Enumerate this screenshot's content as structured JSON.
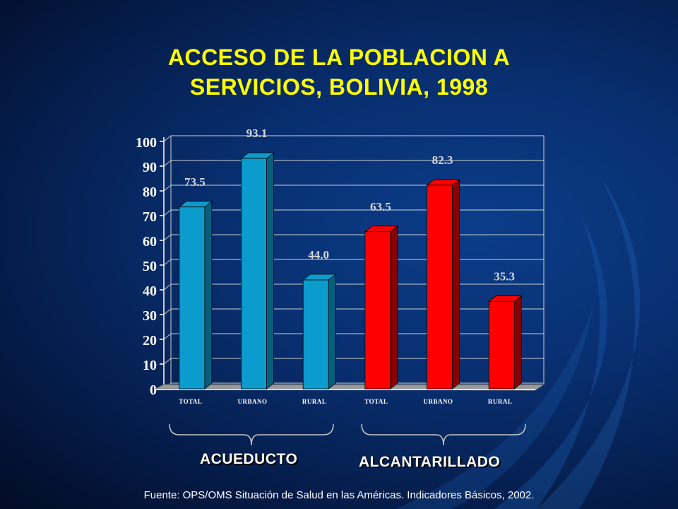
{
  "title_line1": "ACCESO DE LA POBLACION A",
  "title_line2": "SERVICIOS,  BOLIVIA, 1998",
  "groups": [
    "ACUEDUCTO",
    "ALCANTARILLADO"
  ],
  "source": "Fuente: OPS/OMS Situación de Salud en las Américas.  Indicadores Básicos, 2002.",
  "colors": {
    "acueducto_front": "#0b9ccd",
    "acueducto_side": "#055f7d",
    "alcantarillado_front": "#ff0000",
    "alcantarillado_side": "#8a0000",
    "title": "#ffff00"
  },
  "chart_data": {
    "type": "bar",
    "title": "ACCESO DE LA POBLACION A SERVICIOS,  BOLIVIA, 1998",
    "categories": [
      "TOTAL",
      "URBANO",
      "RURAL",
      "TOTAL",
      "URBANO",
      "RURAL"
    ],
    "groups": [
      {
        "name": "ACUEDUCTO",
        "categories": [
          "TOTAL",
          "URBANO",
          "RURAL"
        ],
        "values": [
          73.5,
          93.1,
          44.0
        ]
      },
      {
        "name": "ALCANTARILLADO",
        "categories": [
          "TOTAL",
          "URBANO",
          "RURAL"
        ],
        "values": [
          63.5,
          82.3,
          35.3
        ]
      }
    ],
    "values": [
      73.5,
      93.1,
      44.0,
      63.5,
      82.3,
      35.3
    ],
    "data_labels": [
      "73.5",
      "93.1",
      "44.0",
      "63.5",
      "82.3",
      "35.3"
    ],
    "ylim": [
      0,
      100
    ],
    "yticks": [
      0,
      10,
      20,
      30,
      40,
      50,
      60,
      70,
      80,
      90,
      100
    ],
    "grid": true,
    "xlabel": "",
    "ylabel": ""
  }
}
